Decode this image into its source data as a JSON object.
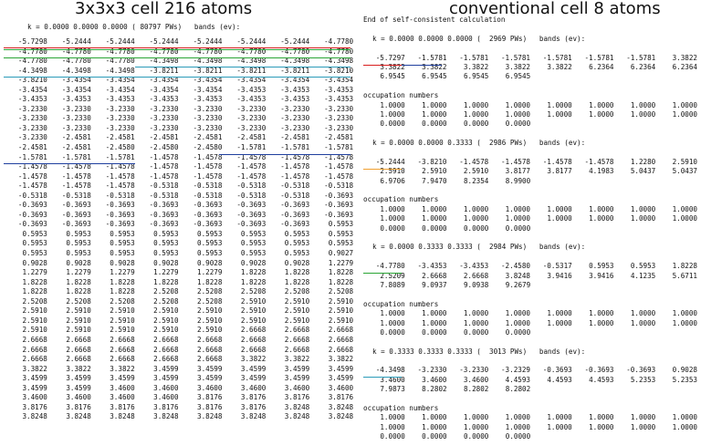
{
  "left": {
    "title": "3x3x3 cell 216 atoms",
    "header": "k = 0.0000 0.0000 0.0000 ( 80797 PWs)   bands (ev):",
    "rows": [
      [
        "-5.7298",
        "-5.2444",
        "-5.2444",
        "-5.2444",
        "-5.2444",
        "-5.2444",
        "-5.2444",
        "-4.7780"
      ],
      [
        "-4.7780",
        "-4.7780",
        "-4.7780",
        "-4.7780",
        "-4.7780",
        "-4.7780",
        "-4.7780",
        "-4.7780"
      ],
      [
        "-4.7780",
        "-4.7780",
        "-4.7780",
        "-4.3498",
        "-4.3498",
        "-4.3498",
        "-4.3498",
        "-4.3498"
      ],
      [
        "-4.3498",
        "-4.3498",
        "-4.3498",
        "-3.8211",
        "-3.8211",
        "-3.8211",
        "-3.8211",
        "-3.8210"
      ],
      [
        "-3.8210",
        "-3.4354",
        "-3.4354",
        "-3.4354",
        "-3.4354",
        "-3.4354",
        "-3.4354",
        "-3.4354"
      ],
      [
        "-3.4354",
        "-3.4354",
        "-3.4354",
        "-3.4354",
        "-3.4354",
        "-3.4353",
        "-3.4353",
        "-3.4353"
      ],
      [
        "-3.4353",
        "-3.4353",
        "-3.4353",
        "-3.4353",
        "-3.4353",
        "-3.4353",
        "-3.4353",
        "-3.4353"
      ],
      [
        "-3.2330",
        "-3.2330",
        "-3.2330",
        "-3.2330",
        "-3.2330",
        "-3.2330",
        "-3.2330",
        "-3.2330"
      ],
      [
        "-3.2330",
        "-3.2330",
        "-3.2330",
        "-3.2330",
        "-3.2330",
        "-3.2330",
        "-3.2330",
        "-3.2330"
      ],
      [
        "-3.2330",
        "-3.2330",
        "-3.2330",
        "-3.2330",
        "-3.2330",
        "-3.2330",
        "-3.2330",
        "-3.2330"
      ],
      [
        "-3.2330",
        "-2.4581",
        "-2.4581",
        "-2.4581",
        "-2.4581",
        "-2.4581",
        "-2.4581",
        "-2.4581"
      ],
      [
        "-2.4581",
        "-2.4581",
        "-2.4580",
        "-2.4580",
        "-2.4580",
        "-1.5781",
        "-1.5781",
        "-1.5781"
      ],
      [
        "-1.5781",
        "-1.5781",
        "-1.5781",
        "-1.4578",
        "-1.4578",
        "-1.4578",
        "-1.4578",
        "-1.4578"
      ],
      [
        "-1.4578",
        "-1.4578",
        "-1.4578",
        "-1.4578",
        "-1.4578",
        "-1.4578",
        "-1.4578",
        "-1.4578"
      ],
      [
        "-1.4578",
        "-1.4578",
        "-1.4578",
        "-1.4578",
        "-1.4578",
        "-1.4578",
        "-1.4578",
        "-1.4578"
      ],
      [
        "-1.4578",
        "-1.4578",
        "-1.4578",
        "-0.5318",
        "-0.5318",
        "-0.5318",
        "-0.5318",
        "-0.5318"
      ],
      [
        "-0.5318",
        "-0.5318",
        "-0.5318",
        "-0.5318",
        "-0.5318",
        "-0.5318",
        "-0.5318",
        "-0.3693"
      ],
      [
        "-0.3693",
        "-0.3693",
        "-0.3693",
        "-0.3693",
        "-0.3693",
        "-0.3693",
        "-0.3693",
        "-0.3693"
      ],
      [
        "-0.3693",
        "-0.3693",
        "-0.3693",
        "-0.3693",
        "-0.3693",
        "-0.3693",
        "-0.3693",
        "-0.3693"
      ],
      [
        "-0.3693",
        "-0.3693",
        "-0.3693",
        "-0.3693",
        "-0.3693",
        "-0.3693",
        "-0.3693",
        "0.5953"
      ],
      [
        "0.5953",
        "0.5953",
        "0.5953",
        "0.5953",
        "0.5953",
        "0.5953",
        "0.5953",
        "0.5953"
      ],
      [
        "0.5953",
        "0.5953",
        "0.5953",
        "0.5953",
        "0.5953",
        "0.5953",
        "0.5953",
        "0.5953"
      ],
      [
        "0.5953",
        "0.5953",
        "0.5953",
        "0.5953",
        "0.5953",
        "0.5953",
        "0.5953",
        "0.9027"
      ],
      [
        "0.9028",
        "0.9028",
        "0.9028",
        "0.9028",
        "0.9028",
        "0.9028",
        "0.9028",
        "1.2279"
      ],
      [
        "1.2279",
        "1.2279",
        "1.2279",
        "1.2279",
        "1.2279",
        "1.8228",
        "1.8228",
        "1.8228"
      ],
      [
        "1.8228",
        "1.8228",
        "1.8228",
        "1.8228",
        "1.8228",
        "1.8228",
        "1.8228",
        "1.8228"
      ],
      [
        "1.8228",
        "1.8228",
        "1.8228",
        "2.5208",
        "2.5208",
        "2.5208",
        "2.5208",
        "2.5208"
      ],
      [
        "2.5208",
        "2.5208",
        "2.5208",
        "2.5208",
        "2.5208",
        "2.5910",
        "2.5910",
        "2.5910"
      ],
      [
        "2.5910",
        "2.5910",
        "2.5910",
        "2.5910",
        "2.5910",
        "2.5910",
        "2.5910",
        "2.5910"
      ],
      [
        "2.5910",
        "2.5910",
        "2.5910",
        "2.5910",
        "2.5910",
        "2.5910",
        "2.5910",
        "2.5910"
      ],
      [
        "2.5910",
        "2.5910",
        "2.5910",
        "2.5910",
        "2.5910",
        "2.6668",
        "2.6668",
        "2.6668"
      ],
      [
        "2.6668",
        "2.6668",
        "2.6668",
        "2.6668",
        "2.6668",
        "2.6668",
        "2.6668",
        "2.6668"
      ],
      [
        "2.6668",
        "2.6668",
        "2.6668",
        "2.6668",
        "2.6668",
        "2.6668",
        "2.6668",
        "2.6668"
      ],
      [
        "2.6668",
        "2.6668",
        "2.6668",
        "2.6668",
        "2.6668",
        "3.3822",
        "3.3822",
        "3.3822"
      ],
      [
        "3.3822",
        "3.3822",
        "3.3822",
        "3.4599",
        "3.4599",
        "3.4599",
        "3.4599",
        "3.4599"
      ],
      [
        "3.4599",
        "3.4599",
        "3.4599",
        "3.4599",
        "3.4599",
        "3.4599",
        "3.4599",
        "3.4599"
      ],
      [
        "3.4599",
        "3.4599",
        "3.4600",
        "3.4600",
        "3.4600",
        "3.4600",
        "3.4600",
        "3.4600"
      ],
      [
        "3.4600",
        "3.4600",
        "3.4600",
        "3.4600",
        "3.8176",
        "3.8176",
        "3.8176",
        "3.8176"
      ],
      [
        "3.8176",
        "3.8176",
        "3.8176",
        "3.8176",
        "3.8176",
        "3.8176",
        "3.8248",
        "3.8248"
      ],
      [
        "3.8248",
        "3.8248",
        "3.8248",
        "3.8248",
        "3.8248",
        "3.8248",
        "3.8248",
        "3.8248"
      ]
    ]
  },
  "right": {
    "title": "conventional cell 8 atoms",
    "end_line": "End of self-consistent calculation",
    "occ_label": "occupation numbers",
    "blocks": [
      {
        "kline": "k = 0.0000 0.0000 0.0000 (  2969 PWs)   bands (ev):",
        "bands": [
          [
            "-5.7297",
            "-1.5781",
            "-1.5781",
            "-1.5781",
            "-1.5781",
            "-1.5781",
            "-1.5781",
            "3.3822"
          ],
          [
            "3.3822",
            "3.3822",
            "3.3822",
            "3.3822",
            "3.3822",
            "6.2364",
            "6.2364",
            "6.2364"
          ],
          [
            "6.9545",
            "6.9545",
            "6.9545",
            "6.9545"
          ]
        ],
        "occ": [
          [
            "1.0000",
            "1.0000",
            "1.0000",
            "1.0000",
            "1.0000",
            "1.0000",
            "1.0000",
            "1.0000"
          ],
          [
            "1.0000",
            "1.0000",
            "1.0000",
            "1.0000",
            "1.0000",
            "1.0000",
            "1.0000",
            "1.0000"
          ],
          [
            "0.0000",
            "0.0000",
            "0.0000",
            "0.0000"
          ]
        ]
      },
      {
        "kline": "k = 0.0000 0.0000 0.3333 (  2986 PWs)   bands (ev):",
        "bands": [
          [
            "-5.2444",
            "-3.8210",
            "-1.4578",
            "-1.4578",
            "-1.4578",
            "-1.4578",
            "1.2280",
            "2.5910"
          ],
          [
            "2.5910",
            "2.5910",
            "2.5910",
            "3.8177",
            "3.8177",
            "4.1983",
            "5.0437",
            "5.0437"
          ],
          [
            "6.9706",
            "7.9470",
            "8.2354",
            "8.9900"
          ]
        ],
        "occ": [
          [
            "1.0000",
            "1.0000",
            "1.0000",
            "1.0000",
            "1.0000",
            "1.0000",
            "1.0000",
            "1.0000"
          ],
          [
            "1.0000",
            "1.0000",
            "1.0000",
            "1.0000",
            "1.0000",
            "1.0000",
            "1.0000",
            "1.0000"
          ],
          [
            "0.0000",
            "0.0000",
            "0.0000",
            "0.0000"
          ]
        ]
      },
      {
        "kline": "k = 0.0000 0.3333 0.3333 (  2984 PWs)   bands (ev):",
        "bands": [
          [
            "-4.7780",
            "-3.4353",
            "-3.4353",
            "-2.4580",
            "-0.5317",
            "0.5953",
            "0.5953",
            "1.8228"
          ],
          [
            "2.5209",
            "2.6668",
            "2.6668",
            "3.8248",
            "3.9416",
            "3.9416",
            "4.1235",
            "5.6711"
          ],
          [
            "7.8089",
            "9.0937",
            "9.0938",
            "9.2679"
          ]
        ],
        "occ": [
          [
            "1.0000",
            "1.0000",
            "1.0000",
            "1.0000",
            "1.0000",
            "1.0000",
            "1.0000",
            "1.0000"
          ],
          [
            "1.0000",
            "1.0000",
            "1.0000",
            "1.0000",
            "1.0000",
            "1.0000",
            "1.0000",
            "1.0000"
          ],
          [
            "0.0000",
            "0.0000",
            "0.0000",
            "0.0000"
          ]
        ]
      },
      {
        "kline": "k = 0.3333 0.3333 0.3333 (  3013 PWs)   bands (ev):",
        "bands": [
          [
            "-4.3498",
            "-3.2330",
            "-3.2330",
            "-3.2329",
            "-0.3693",
            "-0.3693",
            "-0.3693",
            "0.9028"
          ],
          [
            "3.4600",
            "3.4600",
            "3.4600",
            "4.4593",
            "4.4593",
            "4.4593",
            "5.2353",
            "5.2353"
          ],
          [
            "7.9873",
            "8.2802",
            "8.2802",
            "8.2802"
          ]
        ],
        "occ": [
          [
            "1.0000",
            "1.0000",
            "1.0000",
            "1.0000",
            "1.0000",
            "1.0000",
            "1.0000",
            "1.0000"
          ],
          [
            "1.0000",
            "1.0000",
            "1.0000",
            "1.0000",
            "1.0000",
            "1.0000",
            "1.0000",
            "1.0000"
          ],
          [
            "0.0000",
            "0.0000",
            "0.0000",
            "0.0000"
          ]
        ]
      }
    ]
  },
  "colors": {
    "red": "#d81e1e",
    "blue": "#1f3f9e",
    "orange": "#f0a030",
    "green": "#2aa535",
    "teal": "#2a9bb8"
  }
}
